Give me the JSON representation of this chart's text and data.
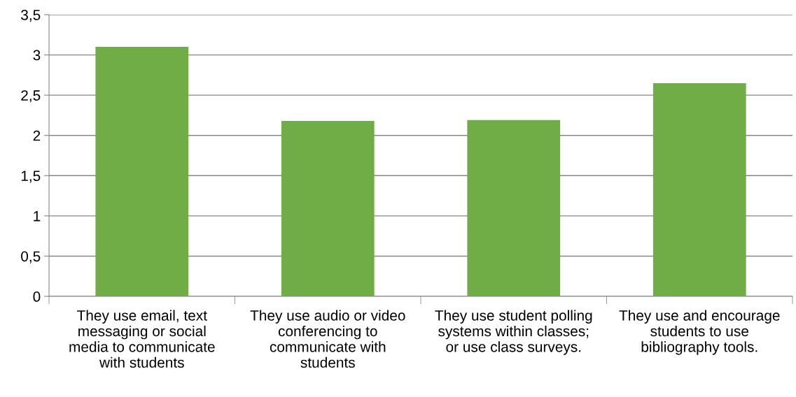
{
  "chart_data": {
    "type": "bar",
    "categories": [
      "They use email, text\nmessaging or social\nmedia to communicate\nwith students",
      "They use audio or video\nconferencing to\ncommunicate with\nstudents",
      "They use student polling\nsystems within classes;\nor use class surveys.",
      "They use and encourage\nstudents to use\nbibliography tools."
    ],
    "values": [
      3.1,
      2.18,
      2.19,
      2.65
    ],
    "color": "#70ad47",
    "ylim": [
      0,
      3.5
    ],
    "yticks": [
      0,
      {
        "value": 0.5,
        "label": "0,5"
      },
      1,
      {
        "value": 1.5,
        "label": "1,5"
      },
      2,
      {
        "value": 2.5,
        "label": "2,5"
      },
      3,
      {
        "value": 3.5,
        "label": "3,5"
      }
    ],
    "grid": "y"
  }
}
